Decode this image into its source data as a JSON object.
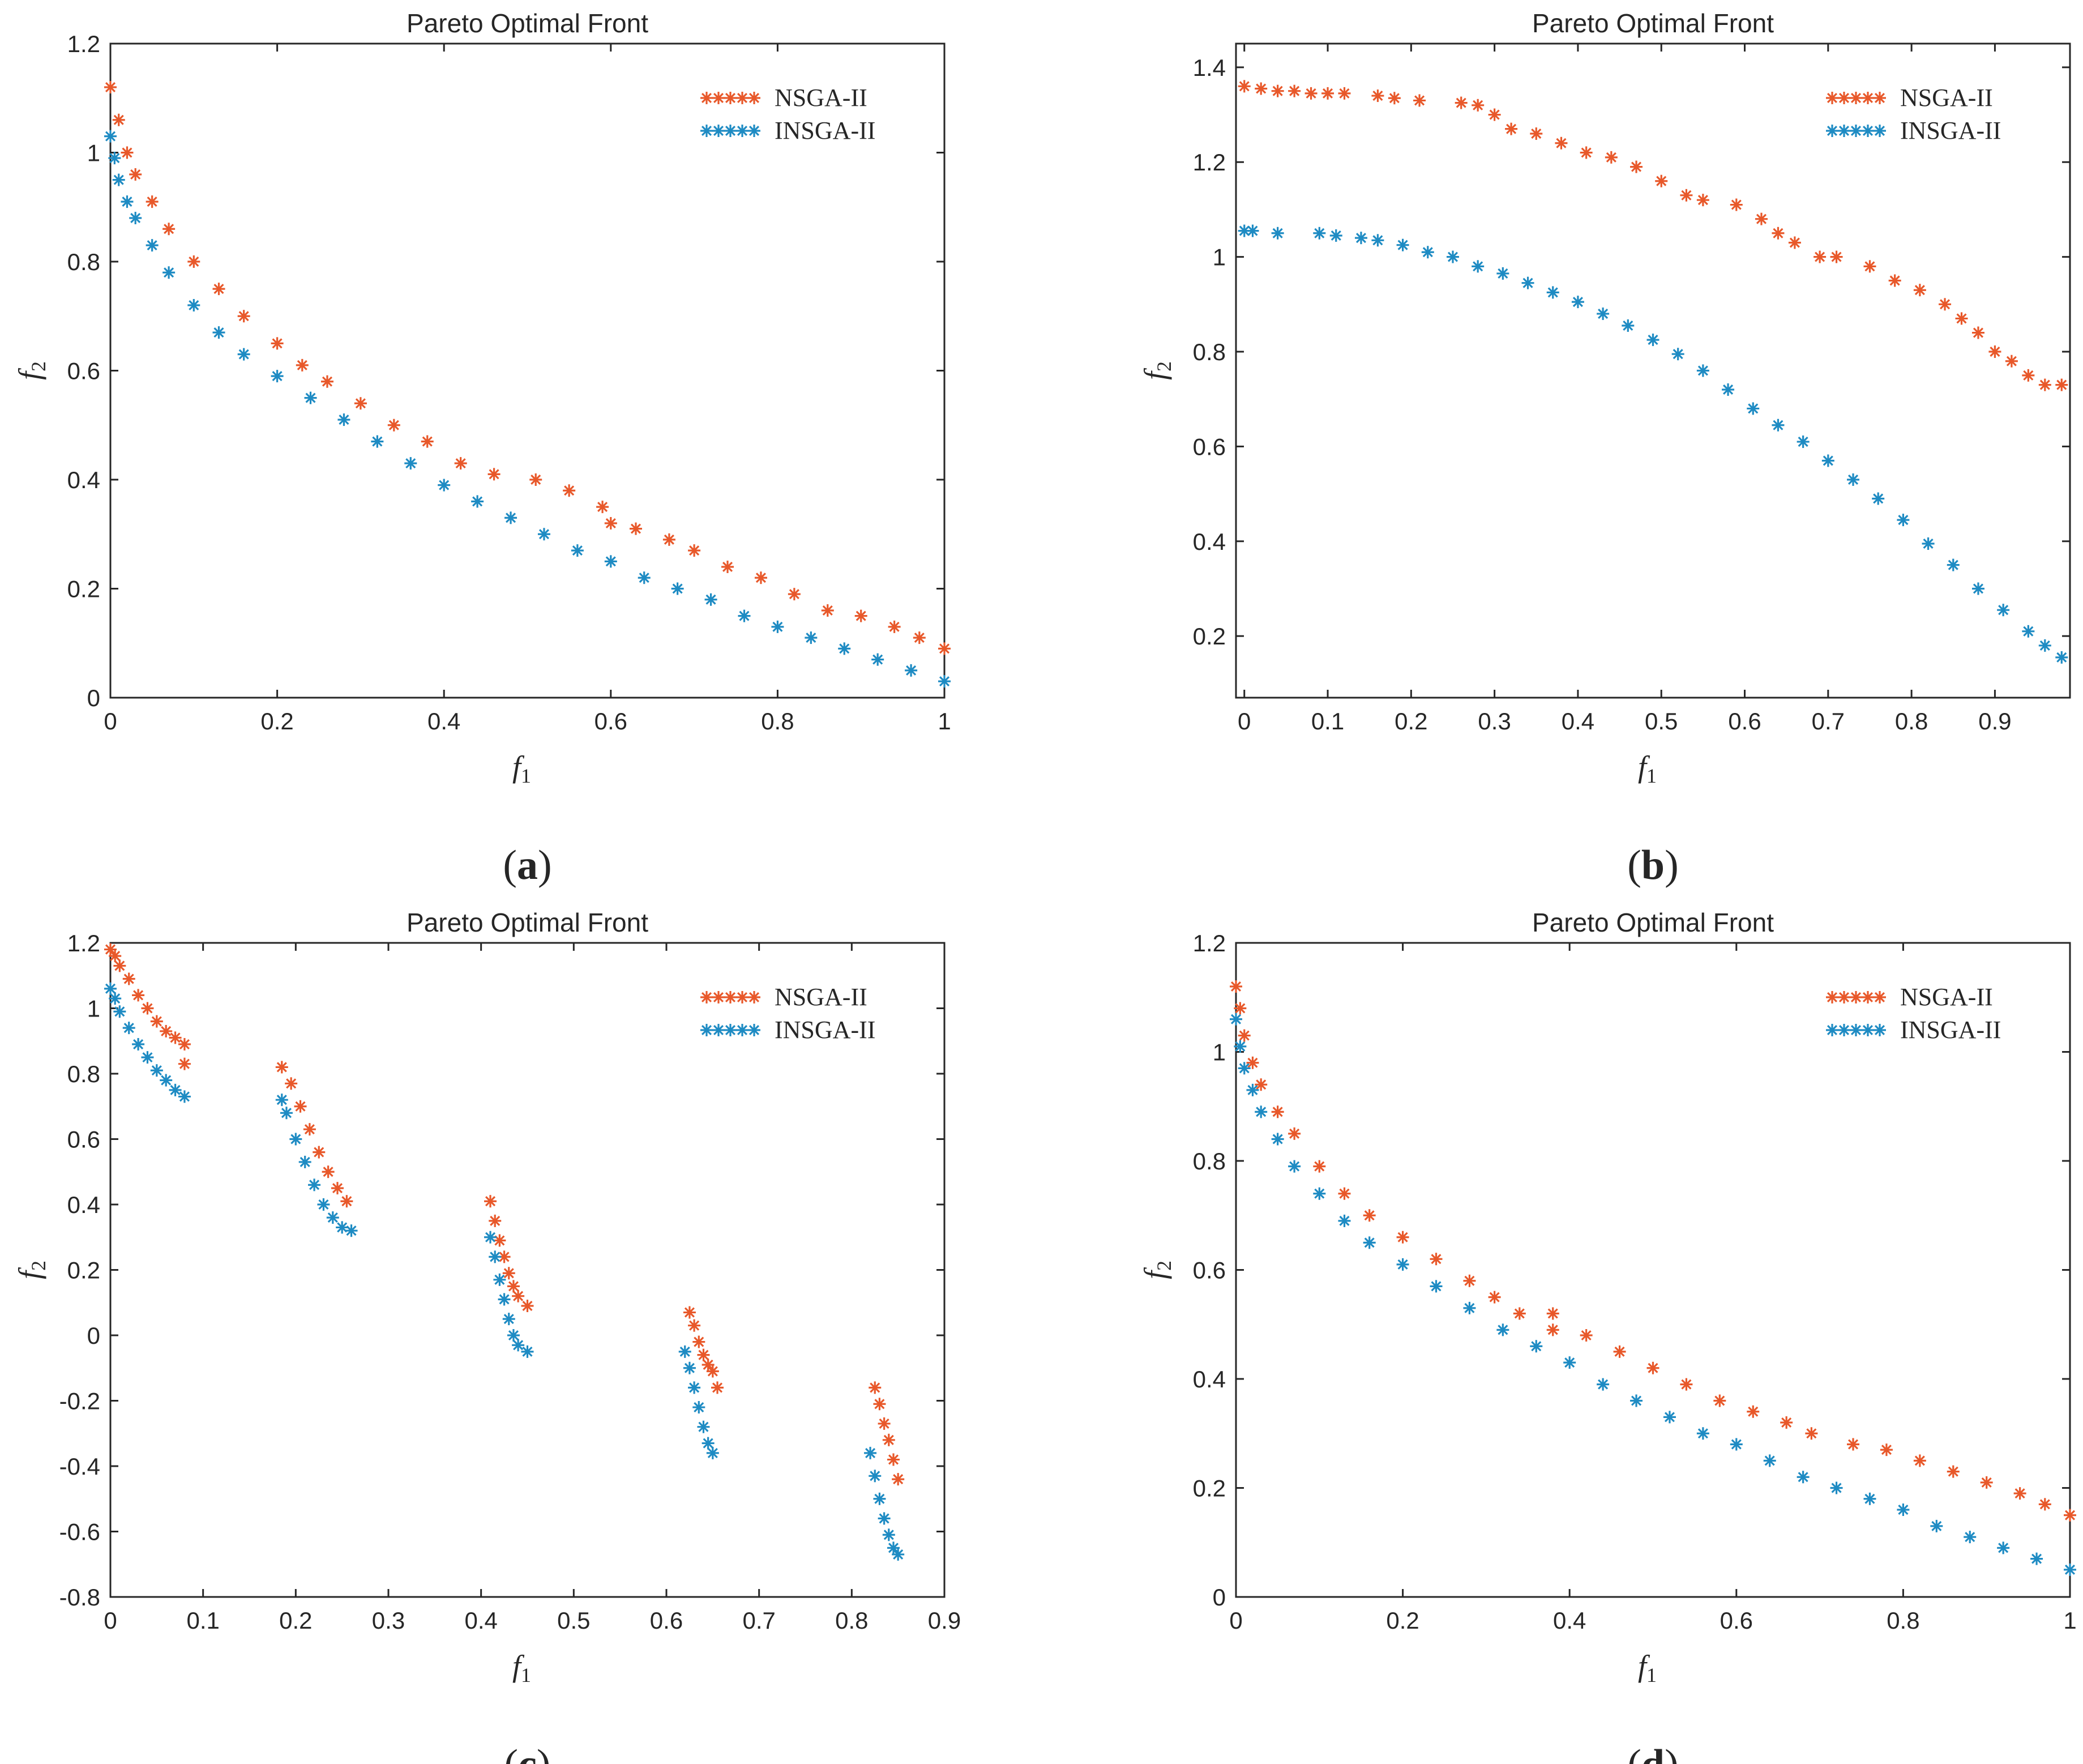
{
  "colors": {
    "nsga": "#E8582A",
    "insga": "#1E8BC3"
  },
  "chart_data": [
    {
      "type": "scatter",
      "title": "Pareto Optimal Front",
      "xlabel": "f",
      "xlabel_sub": "1",
      "ylabel": "f",
      "ylabel_sub": "2",
      "xlim": [
        0,
        1
      ],
      "ylim": [
        0,
        1.2
      ],
      "xticks": [
        0,
        0.2,
        0.4,
        0.6,
        0.8,
        1
      ],
      "xtick_labels": [
        "0",
        "0.2",
        "0.4",
        "0.6",
        "0.8",
        "1"
      ],
      "yticks": [
        0,
        0.2,
        0.4,
        0.6,
        0.8,
        1,
        1.2
      ],
      "ytick_labels": [
        "0",
        "0.2",
        "0.4",
        "0.6",
        "0.8",
        "1",
        "1.2"
      ],
      "grid": false,
      "legend": "top-right",
      "caption": "a",
      "series": [
        {
          "name": "NSGA-II",
          "color": "#E8582A",
          "x": [
            0,
            0.01,
            0.02,
            0.03,
            0.05,
            0.07,
            0.1,
            0.13,
            0.16,
            0.2,
            0.23,
            0.26,
            0.3,
            0.34,
            0.38,
            0.42,
            0.46,
            0.51,
            0.55,
            0.59,
            0.6,
            0.63,
            0.67,
            0.7,
            0.74,
            0.78,
            0.82,
            0.86,
            0.9,
            0.94,
            0.97,
            1.0
          ],
          "y": [
            1.12,
            1.06,
            1.0,
            0.96,
            0.91,
            0.86,
            0.8,
            0.75,
            0.7,
            0.65,
            0.61,
            0.58,
            0.54,
            0.5,
            0.47,
            0.43,
            0.41,
            0.4,
            0.38,
            0.35,
            0.32,
            0.31,
            0.29,
            0.27,
            0.24,
            0.22,
            0.19,
            0.16,
            0.15,
            0.13,
            0.11,
            0.09
          ]
        },
        {
          "name": "INSGA-II",
          "color": "#1E8BC3",
          "x": [
            0,
            0.005,
            0.01,
            0.02,
            0.03,
            0.05,
            0.07,
            0.1,
            0.13,
            0.16,
            0.2,
            0.24,
            0.28,
            0.32,
            0.36,
            0.4,
            0.44,
            0.48,
            0.52,
            0.56,
            0.6,
            0.64,
            0.68,
            0.72,
            0.76,
            0.8,
            0.84,
            0.88,
            0.92,
            0.96,
            1.0
          ],
          "y": [
            1.03,
            0.99,
            0.95,
            0.91,
            0.88,
            0.83,
            0.78,
            0.72,
            0.67,
            0.63,
            0.59,
            0.55,
            0.51,
            0.47,
            0.43,
            0.39,
            0.36,
            0.33,
            0.3,
            0.27,
            0.25,
            0.22,
            0.2,
            0.18,
            0.15,
            0.13,
            0.11,
            0.09,
            0.07,
            0.05,
            0.03
          ]
        }
      ]
    },
    {
      "type": "scatter",
      "title": "Pareto Optimal Front",
      "xlabel": "f",
      "xlabel_sub": "1",
      "ylabel": "f",
      "ylabel_sub": "2",
      "xlim": [
        -0.01,
        0.99
      ],
      "ylim": [
        0.07,
        1.45
      ],
      "xticks": [
        0,
        0.1,
        0.2,
        0.3,
        0.4,
        0.5,
        0.6,
        0.7,
        0.8,
        0.9
      ],
      "xtick_labels": [
        "0",
        "0.1",
        "0.2",
        "0.3",
        "0.4",
        "0.5",
        "0.6",
        "0.7",
        "0.8",
        "0.9"
      ],
      "yticks": [
        0.2,
        0.4,
        0.6,
        0.8,
        1,
        1.2,
        1.4
      ],
      "ytick_labels": [
        "0.2",
        "0.4",
        "0.6",
        "0.8",
        "1",
        "1.2",
        "1.4"
      ],
      "grid": false,
      "legend": "top-right",
      "caption": "b",
      "series": [
        {
          "name": "NSGA-II",
          "color": "#E8582A",
          "x": [
            0,
            0.02,
            0.04,
            0.06,
            0.08,
            0.1,
            0.12,
            0.16,
            0.18,
            0.21,
            0.26,
            0.28,
            0.3,
            0.32,
            0.35,
            0.38,
            0.41,
            0.44,
            0.47,
            0.5,
            0.53,
            0.55,
            0.59,
            0.62,
            0.64,
            0.66,
            0.69,
            0.71,
            0.75,
            0.78,
            0.81,
            0.84,
            0.86,
            0.88,
            0.9,
            0.92,
            0.94,
            0.96,
            0.98
          ],
          "y": [
            1.36,
            1.355,
            1.35,
            1.35,
            1.345,
            1.345,
            1.345,
            1.34,
            1.335,
            1.33,
            1.325,
            1.32,
            1.3,
            1.27,
            1.26,
            1.24,
            1.22,
            1.21,
            1.19,
            1.16,
            1.13,
            1.12,
            1.11,
            1.08,
            1.05,
            1.03,
            1.0,
            1.0,
            0.98,
            0.95,
            0.93,
            0.9,
            0.87,
            0.84,
            0.8,
            0.78,
            0.75,
            0.73,
            0.73
          ]
        },
        {
          "name": "INSGA-II",
          "color": "#1E8BC3",
          "x": [
            0,
            0.01,
            0.04,
            0.09,
            0.11,
            0.14,
            0.16,
            0.19,
            0.22,
            0.25,
            0.28,
            0.31,
            0.34,
            0.37,
            0.4,
            0.43,
            0.46,
            0.49,
            0.52,
            0.55,
            0.58,
            0.61,
            0.64,
            0.67,
            0.7,
            0.73,
            0.76,
            0.79,
            0.82,
            0.85,
            0.88,
            0.91,
            0.94,
            0.96,
            0.98
          ],
          "y": [
            1.055,
            1.055,
            1.05,
            1.05,
            1.045,
            1.04,
            1.035,
            1.025,
            1.01,
            1.0,
            0.98,
            0.965,
            0.945,
            0.925,
            0.905,
            0.88,
            0.855,
            0.825,
            0.795,
            0.76,
            0.72,
            0.68,
            0.645,
            0.61,
            0.57,
            0.53,
            0.49,
            0.445,
            0.395,
            0.35,
            0.3,
            0.255,
            0.21,
            0.18,
            0.155
          ]
        }
      ]
    },
    {
      "type": "scatter",
      "title": "Pareto Optimal Front",
      "xlabel": "f",
      "xlabel_sub": "1",
      "ylabel": "f",
      "ylabel_sub": "2",
      "xlim": [
        0,
        0.9
      ],
      "ylim": [
        -0.8,
        1.2
      ],
      "xticks": [
        0,
        0.1,
        0.2,
        0.3,
        0.4,
        0.5,
        0.6,
        0.7,
        0.8,
        0.9
      ],
      "xtick_labels": [
        "0",
        "0.1",
        "0.2",
        "0.3",
        "0.4",
        "0.5",
        "0.6",
        "0.7",
        "0.8",
        "0.9"
      ],
      "yticks": [
        -0.8,
        -0.6,
        -0.4,
        -0.2,
        0,
        0.2,
        0.4,
        0.6,
        0.8,
        1,
        1.2
      ],
      "ytick_labels": [
        "-0.8",
        "-0.6",
        "-0.4",
        "-0.2",
        "0",
        "0.2",
        "0.4",
        "0.6",
        "0.8",
        "1",
        "1.2"
      ],
      "grid": false,
      "legend": "top-right",
      "caption": "c",
      "series": [
        {
          "name": "NSGA-II",
          "color": "#E8582A",
          "x": [
            0,
            0.005,
            0.01,
            0.02,
            0.03,
            0.04,
            0.05,
            0.06,
            0.07,
            0.08,
            0.08,
            0.185,
            0.195,
            0.205,
            0.215,
            0.225,
            0.235,
            0.245,
            0.255,
            0.41,
            0.415,
            0.42,
            0.425,
            0.43,
            0.435,
            0.44,
            0.45,
            0.625,
            0.63,
            0.635,
            0.64,
            0.645,
            0.65,
            0.655,
            0.825,
            0.83,
            0.835,
            0.84,
            0.845,
            0.85
          ],
          "y": [
            1.18,
            1.16,
            1.13,
            1.09,
            1.04,
            1.0,
            0.96,
            0.93,
            0.91,
            0.89,
            0.83,
            0.82,
            0.77,
            0.7,
            0.63,
            0.56,
            0.5,
            0.45,
            0.41,
            0.41,
            0.35,
            0.29,
            0.24,
            0.19,
            0.15,
            0.12,
            0.09,
            0.07,
            0.03,
            -0.02,
            -0.06,
            -0.09,
            -0.11,
            -0.16,
            -0.16,
            -0.21,
            -0.27,
            -0.32,
            -0.38,
            -0.44
          ]
        },
        {
          "name": "INSGA-II",
          "color": "#1E8BC3",
          "x": [
            0,
            0.005,
            0.01,
            0.02,
            0.03,
            0.04,
            0.05,
            0.06,
            0.07,
            0.08,
            0.185,
            0.19,
            0.2,
            0.21,
            0.22,
            0.23,
            0.24,
            0.25,
            0.26,
            0.41,
            0.415,
            0.42,
            0.425,
            0.43,
            0.435,
            0.44,
            0.45,
            0.62,
            0.625,
            0.63,
            0.635,
            0.64,
            0.645,
            0.65,
            0.82,
            0.825,
            0.83,
            0.835,
            0.84,
            0.845,
            0.85
          ],
          "y": [
            1.06,
            1.03,
            0.99,
            0.94,
            0.89,
            0.85,
            0.81,
            0.78,
            0.75,
            0.73,
            0.72,
            0.68,
            0.6,
            0.53,
            0.46,
            0.4,
            0.36,
            0.33,
            0.32,
            0.3,
            0.24,
            0.17,
            0.11,
            0.05,
            0.0,
            -0.03,
            -0.05,
            -0.05,
            -0.1,
            -0.16,
            -0.22,
            -0.28,
            -0.33,
            -0.36,
            -0.36,
            -0.43,
            -0.5,
            -0.56,
            -0.61,
            -0.65,
            -0.67
          ]
        }
      ]
    },
    {
      "type": "scatter",
      "title": "Pareto Optimal Front",
      "xlabel": "f",
      "xlabel_sub": "1",
      "ylabel": "f",
      "ylabel_sub": "2",
      "xlim": [
        0,
        1
      ],
      "ylim": [
        0,
        1.2
      ],
      "xticks": [
        0,
        0.2,
        0.4,
        0.6,
        0.8,
        1
      ],
      "xtick_labels": [
        "0",
        "0.2",
        "0.4",
        "0.6",
        "0.8",
        "1"
      ],
      "yticks": [
        0,
        0.2,
        0.4,
        0.6,
        0.8,
        1,
        1.2
      ],
      "ytick_labels": [
        "0",
        "0.2",
        "0.4",
        "0.6",
        "0.8",
        "1",
        "1.2"
      ],
      "grid": false,
      "legend": "top-right",
      "caption": "d",
      "series": [
        {
          "name": "NSGA-II",
          "color": "#E8582A",
          "x": [
            0,
            0.005,
            0.01,
            0.02,
            0.03,
            0.05,
            0.07,
            0.1,
            0.13,
            0.16,
            0.2,
            0.24,
            0.28,
            0.31,
            0.34,
            0.38,
            0.38,
            0.42,
            0.46,
            0.5,
            0.54,
            0.58,
            0.62,
            0.66,
            0.69,
            0.74,
            0.78,
            0.82,
            0.86,
            0.9,
            0.94,
            0.97,
            1.0
          ],
          "y": [
            1.12,
            1.08,
            1.03,
            0.98,
            0.94,
            0.89,
            0.85,
            0.79,
            0.74,
            0.7,
            0.66,
            0.62,
            0.58,
            0.55,
            0.52,
            0.52,
            0.49,
            0.48,
            0.45,
            0.42,
            0.39,
            0.36,
            0.34,
            0.32,
            0.3,
            0.28,
            0.27,
            0.25,
            0.23,
            0.21,
            0.19,
            0.17,
            0.15
          ]
        },
        {
          "name": "INSGA-II",
          "color": "#1E8BC3",
          "x": [
            0,
            0.005,
            0.01,
            0.02,
            0.03,
            0.05,
            0.07,
            0.1,
            0.13,
            0.16,
            0.2,
            0.24,
            0.28,
            0.32,
            0.36,
            0.4,
            0.44,
            0.48,
            0.52,
            0.56,
            0.6,
            0.64,
            0.68,
            0.72,
            0.76,
            0.8,
            0.84,
            0.88,
            0.92,
            0.96,
            1.0
          ],
          "y": [
            1.06,
            1.01,
            0.97,
            0.93,
            0.89,
            0.84,
            0.79,
            0.74,
            0.69,
            0.65,
            0.61,
            0.57,
            0.53,
            0.49,
            0.46,
            0.43,
            0.39,
            0.36,
            0.33,
            0.3,
            0.28,
            0.25,
            0.22,
            0.2,
            0.18,
            0.16,
            0.13,
            0.11,
            0.09,
            0.07,
            0.05
          ]
        }
      ]
    }
  ]
}
